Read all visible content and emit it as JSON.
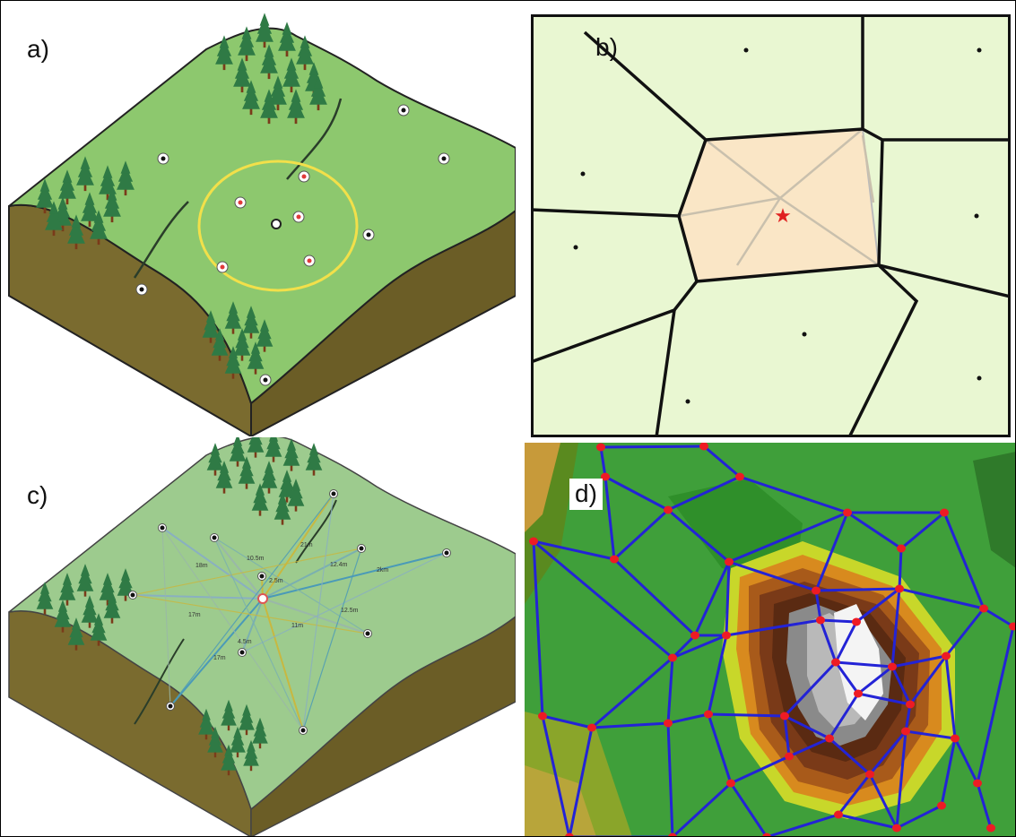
{
  "figure": {
    "panels": [
      {
        "id": "a",
        "label": "a)",
        "subject": "idw-search-radius"
      },
      {
        "id": "b",
        "label": "b)",
        "subject": "natural-neighbor-voronoi"
      },
      {
        "id": "c",
        "label": "c)",
        "subject": "kriging-distances"
      },
      {
        "id": "d",
        "label": "d)",
        "subject": "tin-surface"
      }
    ],
    "distance_labels": [
      "18m",
      "10.5m",
      "21m",
      "2.5m",
      "12.4m",
      "2km",
      "17m",
      "4.5m",
      "11m",
      "12.5m",
      "17m"
    ]
  },
  "colors": {
    "ground": "#8dc86e",
    "ground_c": "#9dcb8e",
    "soil": "#7a6b2f",
    "tree": "#2f7a45",
    "trunk": "#7a3b1a",
    "circle": "#f2e04a",
    "voronoi_fill": "#e9f7d2",
    "voronoi_highlight": "#fae6c6",
    "star": "#e02020",
    "tin_edge": "#2323d6",
    "tin_vertex": "#ee1b24"
  }
}
